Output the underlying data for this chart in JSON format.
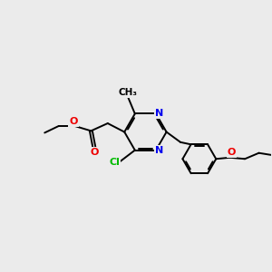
{
  "background_color": "#ebebeb",
  "bond_color": "#000000",
  "atom_colors": {
    "N": "#0000ee",
    "O": "#ee0000",
    "Cl": "#00bb00",
    "C": "#000000"
  },
  "figsize": [
    3.0,
    3.0
  ],
  "dpi": 100,
  "xlim": [
    0,
    10
  ],
  "ylim": [
    0,
    10
  ]
}
